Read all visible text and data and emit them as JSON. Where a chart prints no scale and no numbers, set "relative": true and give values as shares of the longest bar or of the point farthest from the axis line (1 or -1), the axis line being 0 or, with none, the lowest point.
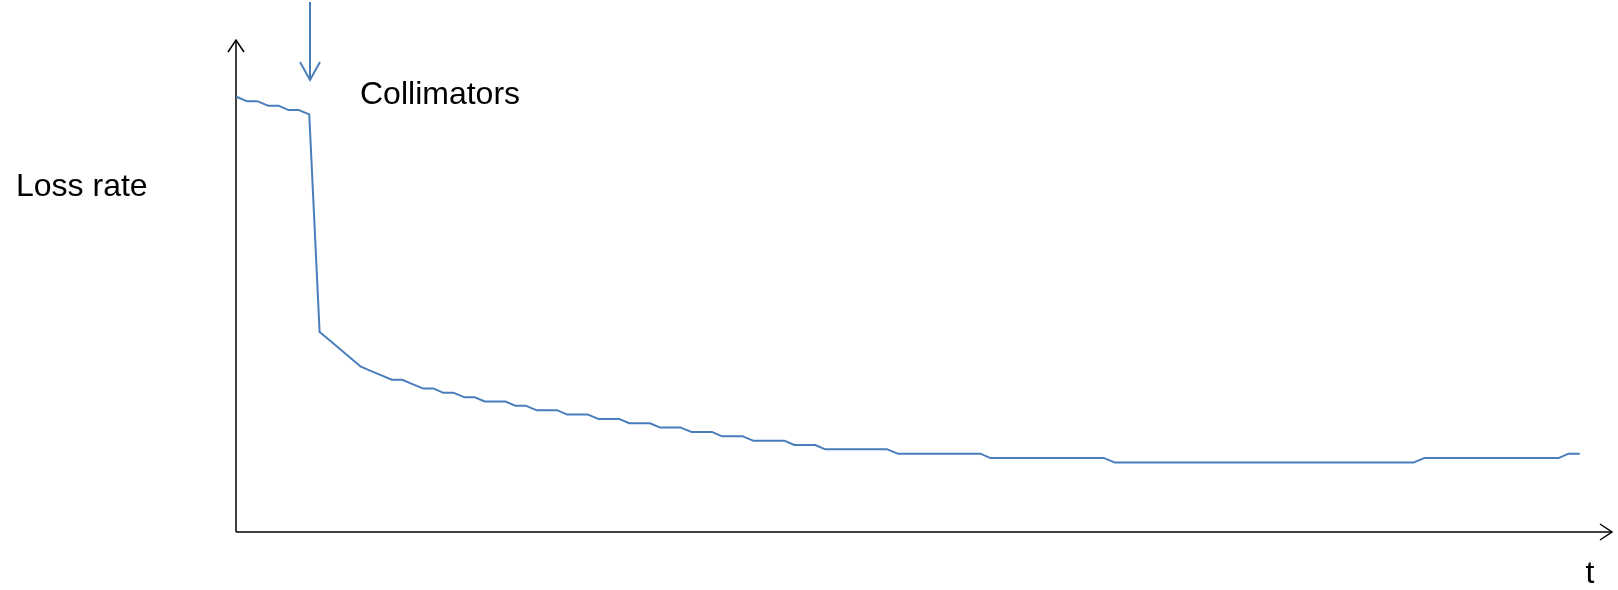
{
  "chart_data": {
    "type": "line",
    "relative": true,
    "ylabel": "Loss rate",
    "xlabel": "t",
    "annotations": [
      "Collimators"
    ],
    "categories": [
      null,
      null,
      null,
      null,
      null,
      null,
      null,
      null,
      null,
      null,
      null,
      null,
      null,
      null,
      null,
      null,
      null,
      null,
      null,
      null,
      null,
      null,
      null,
      null,
      null,
      null,
      null,
      null,
      null,
      null,
      null,
      null,
      null,
      null,
      null,
      null,
      null,
      null,
      null,
      null,
      null,
      null,
      null,
      null,
      null,
      null,
      null,
      null,
      null,
      null,
      null,
      null,
      null,
      null,
      null,
      null,
      null,
      null,
      null,
      null,
      null,
      null,
      null,
      null,
      null,
      null,
      null,
      null,
      null,
      null,
      null,
      null,
      null,
      null,
      null,
      null,
      null,
      null,
      null,
      null,
      null,
      null,
      null,
      null,
      null,
      null,
      null,
      null,
      null,
      null,
      null,
      null,
      null,
      null,
      null,
      null,
      null,
      null,
      null,
      null,
      null,
      null,
      null,
      null,
      null,
      null,
      null,
      null,
      null,
      null,
      null,
      null,
      null,
      null,
      null,
      null,
      null,
      null,
      null,
      null,
      null,
      null,
      null,
      null,
      null,
      null,
      null,
      null,
      null,
      null,
      null
    ],
    "series": [
      {
        "color": "#4a7ebb",
        "values": [
          1,
          0.99,
          0.99,
          0.98,
          0.98,
          0.97,
          0.97,
          0.96,
          0.46,
          0.44,
          0.42,
          0.4,
          0.38,
          0.37,
          0.36,
          0.35,
          0.35,
          0.34,
          0.33,
          0.33,
          0.32,
          0.32,
          0.31,
          0.31,
          0.3,
          0.3,
          0.3,
          0.29,
          0.29,
          0.28,
          0.28,
          0.28,
          0.27,
          0.27,
          0.27,
          0.26,
          0.26,
          0.26,
          0.25,
          0.25,
          0.25,
          0.24,
          0.24,
          0.24,
          0.23,
          0.23,
          0.23,
          0.22,
          0.22,
          0.22,
          0.21,
          0.21,
          0.21,
          0.21,
          0.2,
          0.2,
          0.2,
          0.19,
          0.19,
          0.19,
          0.19,
          0.19,
          0.19,
          0.19,
          0.18,
          0.18,
          0.18,
          0.18,
          0.18,
          0.18,
          0.18,
          0.18,
          0.18,
          0.17,
          0.17,
          0.17,
          0.17,
          0.17,
          0.17,
          0.17,
          0.17,
          0.17,
          0.17,
          0.17,
          0.17,
          0.16,
          0.16,
          0.16,
          0.16,
          0.16,
          0.16,
          0.16,
          0.16,
          0.16,
          0.16,
          0.16,
          0.16,
          0.16,
          0.16,
          0.16,
          0.16,
          0.16,
          0.16,
          0.16,
          0.16,
          0.16,
          0.16,
          0.16,
          0.16,
          0.16,
          0.16,
          0.16,
          0.16,
          0.16,
          0.16,
          0.17,
          0.17,
          0.17,
          0.17,
          0.17,
          0.17,
          0.17,
          0.17,
          0.17,
          0.17,
          0.17,
          0.17,
          0.17,
          0.17,
          0.18,
          0.18
        ]
      }
    ]
  }
}
